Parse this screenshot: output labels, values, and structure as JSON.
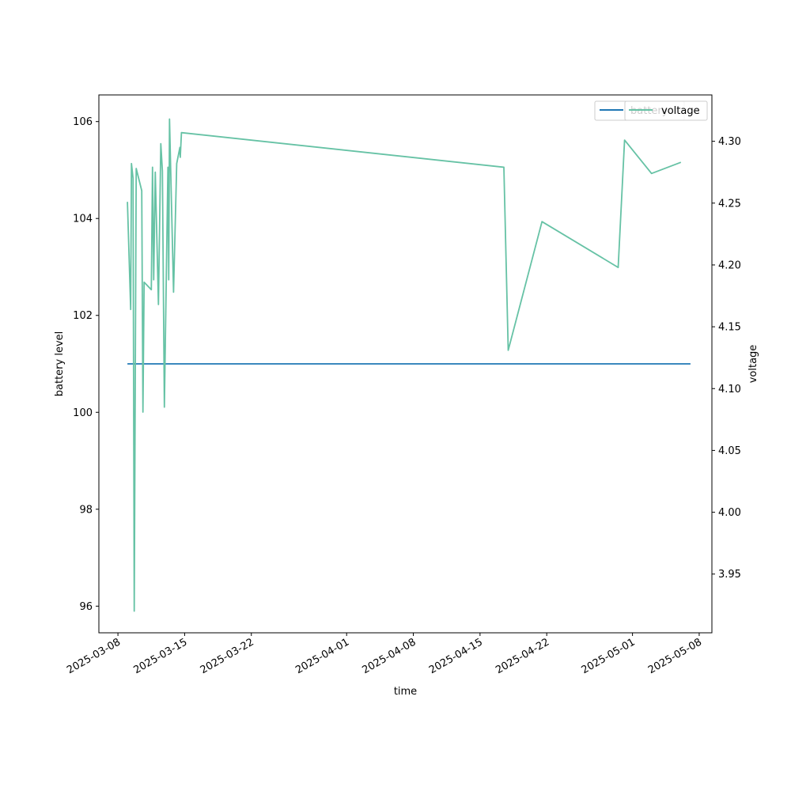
{
  "chart_data": {
    "type": "line",
    "xlabel": "time",
    "ylabel_left": "battery level",
    "ylabel_right": "voltage",
    "x_ticks": [
      "2025-03-08",
      "2025-03-15",
      "2025-03-22",
      "2025-04-01",
      "2025-04-08",
      "2025-04-15",
      "2025-04-22",
      "2025-05-01",
      "2025-05-08"
    ],
    "y_left_ticks": [
      96,
      98,
      100,
      102,
      104,
      106
    ],
    "y_right_ticks": [
      3.95,
      4.0,
      4.05,
      4.1,
      4.15,
      4.2,
      4.25,
      4.3
    ],
    "y_left_lim": [
      95.45,
      106.55
    ],
    "y_right_lim": [
      3.9025,
      4.3375
    ],
    "x_lim": [
      "2025-03-06 00:00",
      "2025-05-09 08:00"
    ],
    "legend_position": "top-right",
    "series": [
      {
        "name": "battery",
        "axis": "left",
        "color": "#1f77b4",
        "points": [
          [
            "2025-03-09 00:00",
            101
          ],
          [
            "2025-05-07 02:00",
            101
          ]
        ]
      },
      {
        "name": "voltage",
        "axis": "right",
        "color": "#66c2a5",
        "points": [
          [
            "2025-03-09 00:00",
            4.251
          ],
          [
            "2025-03-09 08:00",
            4.164
          ],
          [
            "2025-03-09 10:00",
            4.282
          ],
          [
            "2025-03-09 14:00",
            4.27
          ],
          [
            "2025-03-09 17:00",
            3.92
          ],
          [
            "2025-03-09 22:00",
            4.278
          ],
          [
            "2025-03-10 12:00",
            4.26
          ],
          [
            "2025-03-10 15:00",
            4.081
          ],
          [
            "2025-03-10 18:00",
            4.186
          ],
          [
            "2025-03-11 12:00",
            4.18
          ],
          [
            "2025-03-11 15:00",
            4.279
          ],
          [
            "2025-03-11 18:00",
            4.188
          ],
          [
            "2025-03-11 22:00",
            4.275
          ],
          [
            "2025-03-12 06:00",
            4.168
          ],
          [
            "2025-03-12 12:00",
            4.298
          ],
          [
            "2025-03-12 16:00",
            4.276
          ],
          [
            "2025-03-12 21:00",
            4.085
          ],
          [
            "2025-03-13 06:00",
            4.279
          ],
          [
            "2025-03-13 08:00",
            4.188
          ],
          [
            "2025-03-13 10:00",
            4.318
          ],
          [
            "2025-03-13 20:00",
            4.178
          ],
          [
            "2025-03-14 04:00",
            4.282
          ],
          [
            "2025-03-14 12:00",
            4.295
          ],
          [
            "2025-03-14 13:00",
            4.287
          ],
          [
            "2025-03-14 16:00",
            4.307
          ],
          [
            "2025-04-17 12:00",
            4.279
          ],
          [
            "2025-04-17 23:00",
            4.131
          ],
          [
            "2025-04-21 12:00",
            4.235
          ],
          [
            "2025-04-29 12:00",
            4.198
          ],
          [
            "2025-04-30 04:00",
            4.301
          ],
          [
            "2025-05-03 00:00",
            4.274
          ],
          [
            "2025-05-06 02:00",
            4.283
          ]
        ]
      }
    ]
  }
}
